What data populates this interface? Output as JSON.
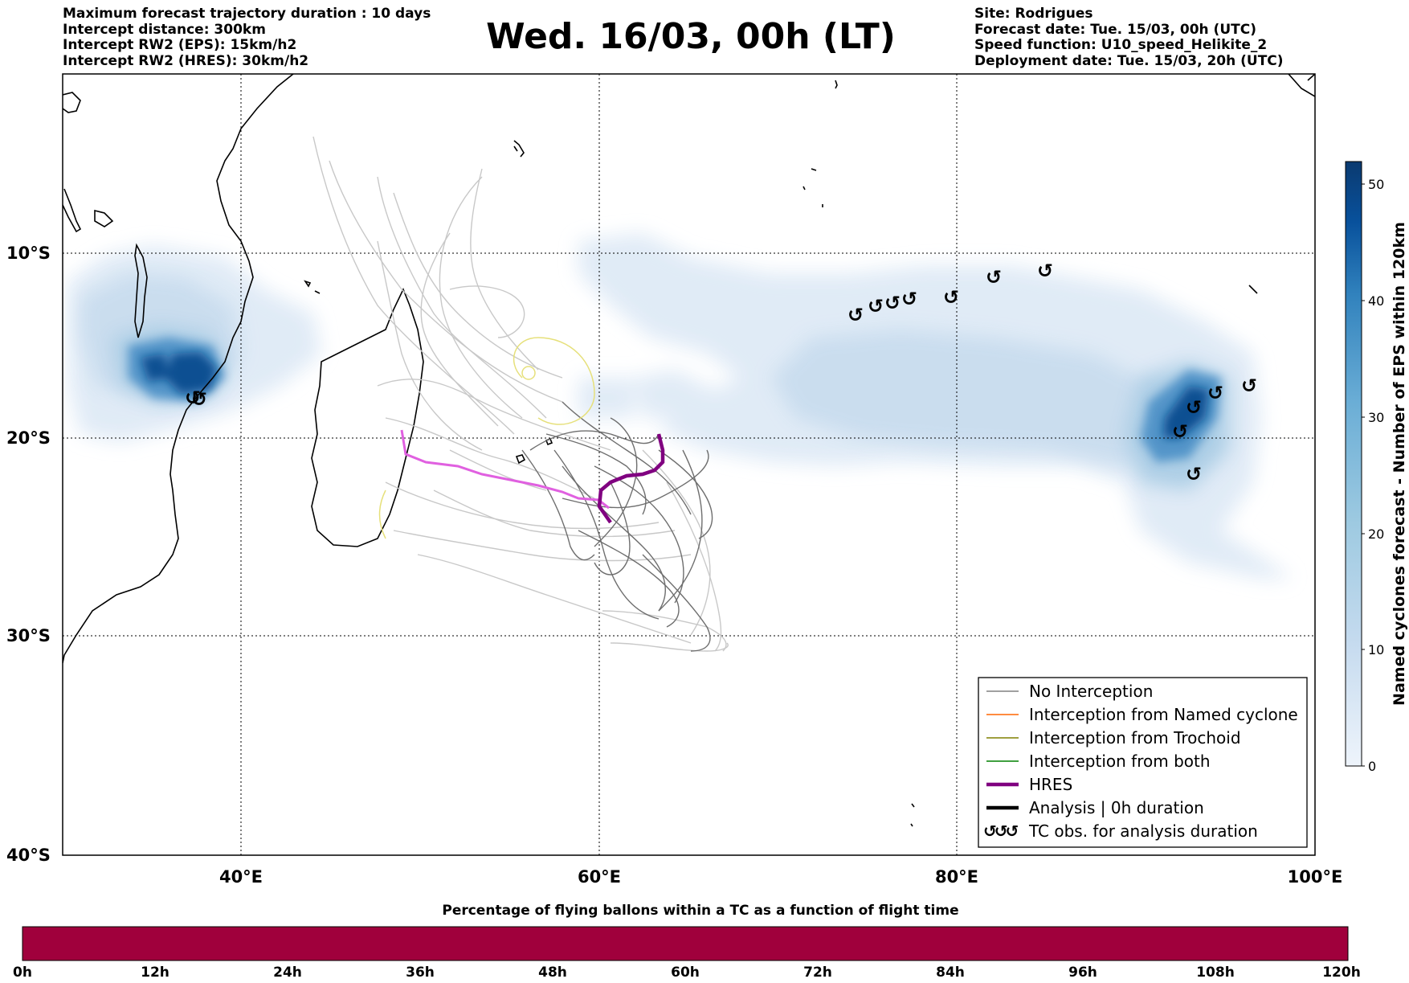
{
  "header_left": [
    "Maximum forecast trajectory duration : 10 days",
    "Intercept distance: 300km",
    "Intercept RW2 (EPS):  15km/h2",
    "Intercept RW2 (HRES): 30km/h2"
  ],
  "title": "Wed. 16/03, 00h (LT)",
  "header_right": [
    "Site: Rodrigues",
    "Forecast date: Tue. 15/03, 00h (UTC)",
    "Speed function: U10_speed_Helikite_2",
    "Deployment date: Tue. 15/03, 20h (UTC)"
  ],
  "map": {
    "lat_labels": [
      "10°S",
      "20°S",
      "30°S",
      "40°S"
    ],
    "lon_labels": [
      "40°E",
      "60°E",
      "80°E",
      "100°E"
    ],
    "extent": {
      "lon_min": 30,
      "lon_max": 100,
      "lat_min": -40,
      "lat_max": -0.5
    }
  },
  "legend": {
    "items": [
      {
        "label": "No Interception",
        "color": "#808080",
        "style": "thin"
      },
      {
        "label": "Interception from Named cyclone",
        "color": "#ff6600",
        "style": "thin"
      },
      {
        "label": "Interception from Trochoid",
        "color": "#808000",
        "style": "thin"
      },
      {
        "label": "Interception from both",
        "color": "#008000",
        "style": "thin"
      },
      {
        "label": "HRES",
        "color": "#800080",
        "style": "thick"
      },
      {
        "label": "Analysis | 0h duration",
        "color": "#000000",
        "style": "thick"
      },
      {
        "label": "TC obs. for analysis duration",
        "color": "#000000",
        "style": "cyclone-symbols",
        "symbols": "↺↺↺"
      }
    ]
  },
  "colorbar": {
    "label": "Named cyclones forecast - Number of EPS within 120km",
    "ticks": [
      0,
      10,
      20,
      30,
      40,
      50
    ],
    "max": 52,
    "colors": [
      "#e8f0fa",
      "#c6dbef",
      "#9ecae1",
      "#6baed6",
      "#3182bd",
      "#08519c",
      "#0b3a70"
    ]
  },
  "time_bar": {
    "title": "Percentage of flying ballons within a TC as a function of flight time",
    "fill_color": "#a0003c",
    "percent": 100,
    "ticks": [
      "0h",
      "12h",
      "24h",
      "36h",
      "48h",
      "60h",
      "72h",
      "84h",
      "96h",
      "108h",
      "120h"
    ]
  },
  "cyclone_symbol": "↺"
}
